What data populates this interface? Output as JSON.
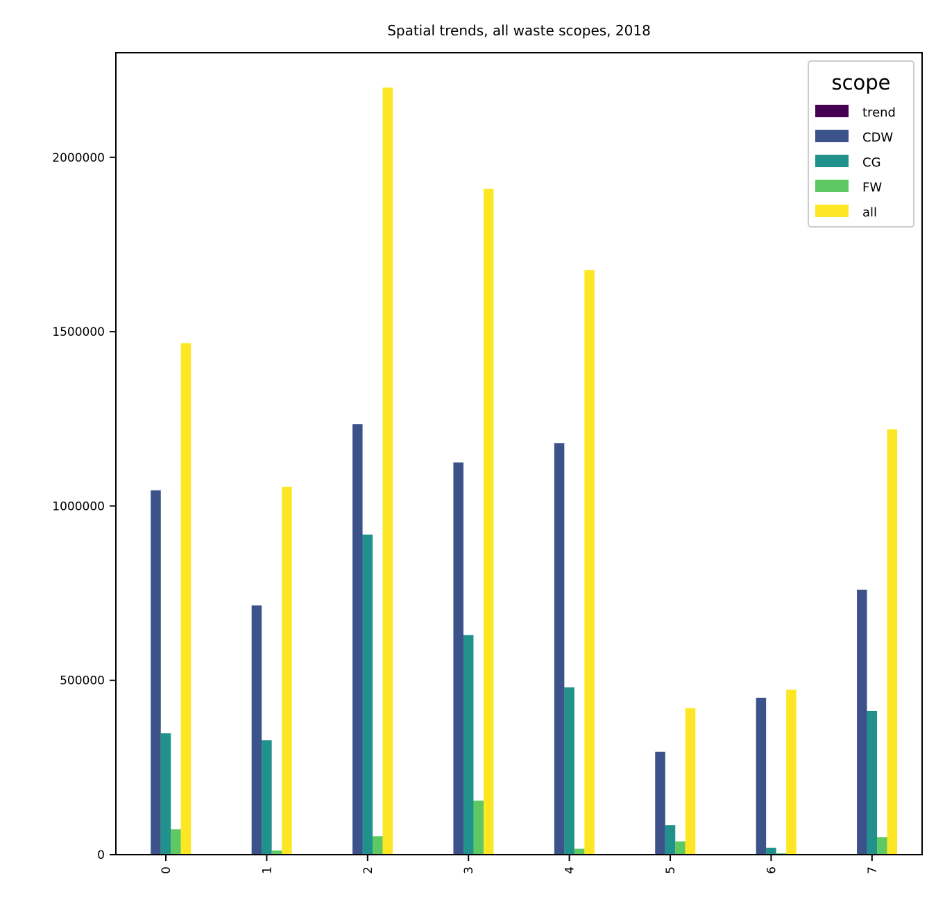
{
  "chart_data": {
    "type": "bar",
    "title": "Spatial trends, all waste scopes, 2018",
    "xlabel": "",
    "ylabel": "",
    "categories": [
      "0",
      "1",
      "2",
      "3",
      "4",
      "5",
      "6",
      "7"
    ],
    "ylim": [
      0,
      2300000
    ],
    "yticks": [
      0,
      500000,
      1000000,
      1500000,
      2000000
    ],
    "ytick_labels": [
      "0",
      "500000",
      "1000000",
      "1500000",
      "2000000"
    ],
    "legend": {
      "title": "scope",
      "placement": "top-right"
    },
    "grid": false,
    "series": [
      {
        "name": "trend",
        "color": "#440154",
        "values": [
          0,
          0,
          0,
          0,
          0,
          0,
          0,
          0
        ]
      },
      {
        "name": "CDW",
        "color": "#3b528b",
        "values": [
          1045000,
          715000,
          1235000,
          1125000,
          1180000,
          295000,
          450000,
          760000
        ]
      },
      {
        "name": "CG",
        "color": "#21918c",
        "values": [
          348000,
          328000,
          918000,
          630000,
          480000,
          85000,
          20000,
          412000
        ]
      },
      {
        "name": "FW",
        "color": "#5ec962",
        "values": [
          73000,
          12000,
          53000,
          155000,
          17000,
          38000,
          4000,
          50000
        ]
      },
      {
        "name": "all",
        "color": "#fde725",
        "values": [
          1467000,
          1055000,
          2200000,
          1910000,
          1677000,
          420000,
          473000,
          1220000
        ]
      }
    ]
  }
}
